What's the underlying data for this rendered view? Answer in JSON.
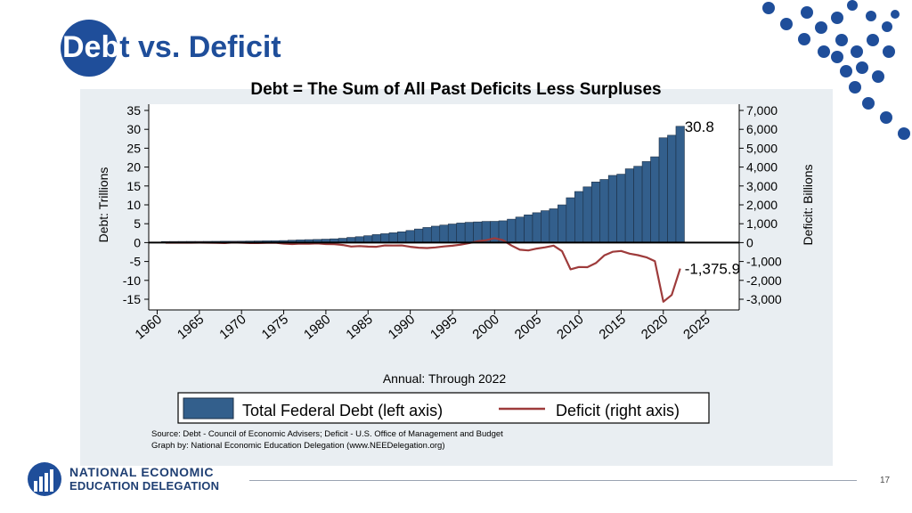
{
  "slide": {
    "title_highlight": "Deb",
    "title_rest": "t vs. Deficit",
    "subtitle": "Debt = The Sum of All Past Deficits Less Surpluses",
    "page_number": "17"
  },
  "logo": {
    "line1": "NATIONAL ECONOMIC",
    "line2": "EDUCATION DELEGATION"
  },
  "colors": {
    "brand": "#1f4e9a",
    "bar": "#335f8c",
    "line": "#9e3b3b"
  },
  "chart_data": {
    "type": "bar",
    "xlabel": "Annual: Through 2022",
    "ylabel_left": "Debt: Trillions",
    "ylabel_right": "Deficit: Billions",
    "x_ticks": [
      "1960",
      "1965",
      "1970",
      "1975",
      "1980",
      "1985",
      "1990",
      "1995",
      "2000",
      "2005",
      "2010",
      "2015",
      "2020",
      "2025"
    ],
    "y_left_ticks": [
      "35",
      "30",
      "25",
      "20",
      "15",
      "10",
      "5",
      "0",
      "-5",
      "-10",
      "-15"
    ],
    "y_right_ticks": [
      "7,000",
      "6,000",
      "5,000",
      "4,000",
      "3,000",
      "2,000",
      "1,000",
      "0",
      "-1,000",
      "-2,000",
      "-3,000"
    ],
    "ylim_left": [
      -15,
      35
    ],
    "ylim_right": [
      -3000,
      7000
    ],
    "xlim": [
      1959,
      2029
    ],
    "series": [
      {
        "name": "Total Federal Debt (left axis)",
        "axis": "left",
        "type": "bar",
        "x": [
          1961,
          1962,
          1963,
          1964,
          1965,
          1966,
          1967,
          1968,
          1969,
          1970,
          1971,
          1972,
          1973,
          1974,
          1975,
          1976,
          1977,
          1978,
          1979,
          1980,
          1981,
          1982,
          1983,
          1984,
          1985,
          1986,
          1987,
          1988,
          1989,
          1990,
          1991,
          1992,
          1993,
          1994,
          1995,
          1996,
          1997,
          1998,
          1999,
          2000,
          2001,
          2002,
          2003,
          2004,
          2005,
          2006,
          2007,
          2008,
          2009,
          2010,
          2011,
          2012,
          2013,
          2014,
          2015,
          2016,
          2017,
          2018,
          2019,
          2020,
          2021,
          2022
        ],
        "values": [
          0.29,
          0.3,
          0.31,
          0.32,
          0.32,
          0.33,
          0.34,
          0.37,
          0.37,
          0.38,
          0.41,
          0.44,
          0.47,
          0.48,
          0.54,
          0.63,
          0.71,
          0.78,
          0.83,
          0.91,
          1.0,
          1.14,
          1.37,
          1.56,
          1.82,
          2.12,
          2.35,
          2.6,
          2.86,
          3.21,
          3.6,
          4.0,
          4.35,
          4.64,
          4.92,
          5.18,
          5.37,
          5.48,
          5.61,
          5.63,
          5.77,
          6.2,
          6.76,
          7.35,
          7.91,
          8.45,
          8.95,
          9.99,
          11.88,
          13.53,
          14.76,
          16.05,
          16.72,
          17.79,
          18.12,
          19.54,
          20.21,
          21.46,
          22.72,
          27.75,
          28.43,
          30.8
        ]
      },
      {
        "name": "Deficit (right axis)",
        "axis": "right",
        "type": "line",
        "x": [
          1961,
          1962,
          1963,
          1964,
          1965,
          1966,
          1967,
          1968,
          1969,
          1970,
          1971,
          1972,
          1973,
          1974,
          1975,
          1976,
          1977,
          1978,
          1979,
          1980,
          1981,
          1982,
          1983,
          1984,
          1985,
          1986,
          1987,
          1988,
          1989,
          1990,
          1991,
          1992,
          1993,
          1994,
          1995,
          1996,
          1997,
          1998,
          1999,
          2000,
          2001,
          2002,
          2003,
          2004,
          2005,
          2006,
          2007,
          2008,
          2009,
          2010,
          2011,
          2012,
          2013,
          2014,
          2015,
          2016,
          2017,
          2018,
          2019,
          2020,
          2021,
          2022
        ],
        "values": [
          -3,
          -7,
          -5,
          -6,
          -1,
          -4,
          -9,
          -25,
          3,
          -3,
          -23,
          -23,
          -15,
          -6,
          -53,
          -74,
          -54,
          -59,
          -41,
          -74,
          -79,
          -128,
          -208,
          -185,
          -212,
          -221,
          -150,
          -155,
          -153,
          -221,
          -269,
          -290,
          -255,
          -203,
          -164,
          -107,
          -22,
          69,
          126,
          236,
          128,
          -158,
          -378,
          -413,
          -318,
          -248,
          -161,
          -459,
          -1413,
          -1294,
          -1300,
          -1087,
          -680,
          -485,
          -442,
          -585,
          -665,
          -779,
          -984,
          -3132,
          -2775,
          -1375.9
        ]
      }
    ],
    "annotations": [
      {
        "text": "30.8",
        "x": 2022,
        "y": 30.8,
        "axis": "left"
      },
      {
        "text": "-1,375.9",
        "x": 2022,
        "y": -1375.9,
        "axis": "right"
      }
    ],
    "legend": {
      "placement": "bottom"
    },
    "source_lines": [
      "Source: Debt - Council of Economic Advisers; Deficit - U.S. Office of Management and Budget",
      "Graph by: National Economic Education Delegation (www.NEEDelegation.org)"
    ]
  }
}
